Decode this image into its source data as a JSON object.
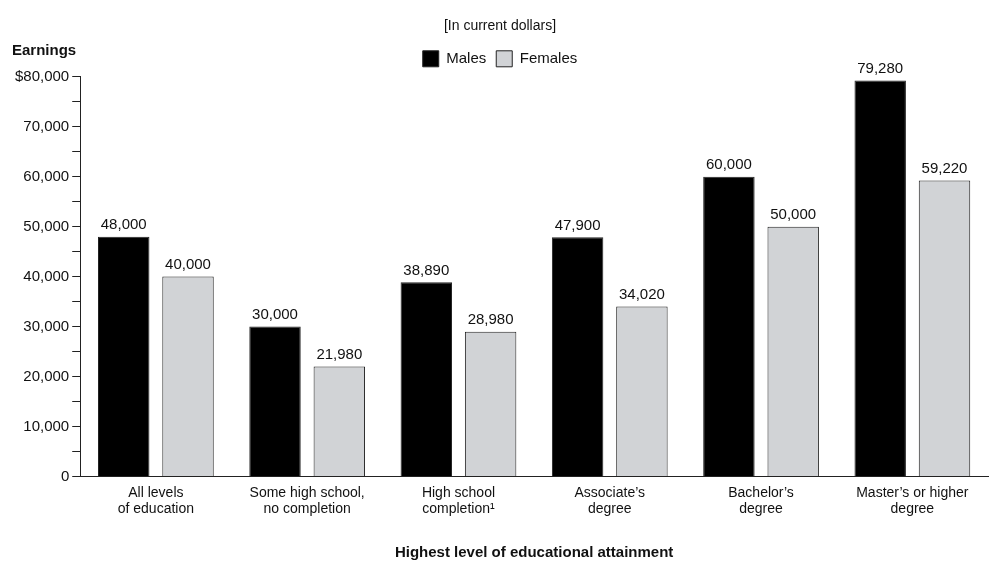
{
  "chart_data": {
    "type": "bar",
    "subtitle": "[In current dollars]",
    "ylabel": "Earnings",
    "xlabel": "Highest level of educational attainment",
    "categories": [
      "All levels\nof education",
      "Some high school,\nno completion",
      "High school\ncompletion¹",
      "Associate’s\ndegree",
      "Bachelor’s\ndegree",
      "Master’s or higher\ndegree"
    ],
    "series": [
      {
        "name": "Males",
        "color": "#000000",
        "values": [
          48000,
          30000,
          38890,
          47900,
          60000,
          79280
        ],
        "value_labels": [
          "48,000",
          "30,000",
          "38,890",
          "47,900",
          "60,000",
          "79,280"
        ]
      },
      {
        "name": "Females",
        "color": "#d1d3d6",
        "values": [
          40000,
          21980,
          28980,
          34020,
          50000,
          59220
        ],
        "value_labels": [
          "40,000",
          "21,980",
          "28,980",
          "34,020",
          "50,000",
          "59,220"
        ]
      }
    ],
    "ylim": [
      0,
      80000
    ],
    "yticks": [
      {
        "value": 0,
        "label": "0"
      },
      {
        "value": 5000,
        "label": null
      },
      {
        "value": 10000,
        "label": "10,000"
      },
      {
        "value": 15000,
        "label": null
      },
      {
        "value": 20000,
        "label": "20,000"
      },
      {
        "value": 25000,
        "label": null
      },
      {
        "value": 30000,
        "label": "30,000"
      },
      {
        "value": 35000,
        "label": null
      },
      {
        "value": 40000,
        "label": "40,000"
      },
      {
        "value": 45000,
        "label": null
      },
      {
        "value": 50000,
        "label": "50,000"
      },
      {
        "value": 55000,
        "label": null
      },
      {
        "value": 60000,
        "label": "60,000"
      },
      {
        "value": 65000,
        "label": null
      },
      {
        "value": 70000,
        "label": "70,000"
      },
      {
        "value": 75000,
        "label": null
      },
      {
        "value": 80000,
        "label": "$80,000"
      }
    ],
    "legend": "top",
    "grid": false
  }
}
